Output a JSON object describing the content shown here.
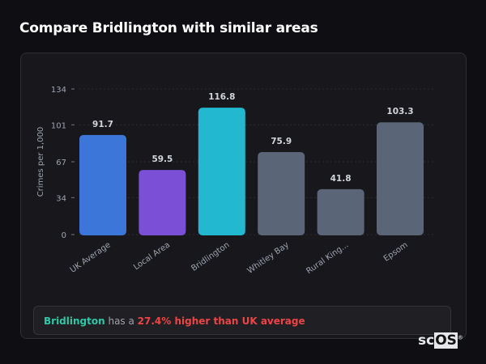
{
  "header": {
    "title": "Compare Bridlington with similar areas"
  },
  "chart_data": {
    "type": "bar",
    "title": "",
    "xlabel": "",
    "ylabel": "Crimes per 1,000",
    "ylim": [
      0,
      134
    ],
    "yticks": [
      0,
      34,
      67,
      101,
      134
    ],
    "grid": true,
    "categories": [
      "UK Average",
      "Local Area",
      "Bridlington",
      "Whitley Bay",
      "Rural King...",
      "Epsom"
    ],
    "values": [
      91.7,
      59.5,
      116.8,
      75.9,
      41.8,
      103.3
    ],
    "data_labels": [
      "91.7",
      "59.5",
      "116.8",
      "75.9",
      "41.8",
      "103.3"
    ],
    "colors": [
      "#3b76d8",
      "#7b4fd6",
      "#22b8cf",
      "#5a6578",
      "#5a6578",
      "#5a6578"
    ]
  },
  "summary": {
    "place": "Bridlington",
    "middle": " has a ",
    "comparison": "27.4% higher than UK average"
  },
  "logo": {
    "text_a": "sc",
    "text_b": "OS",
    "mark": "®"
  }
}
